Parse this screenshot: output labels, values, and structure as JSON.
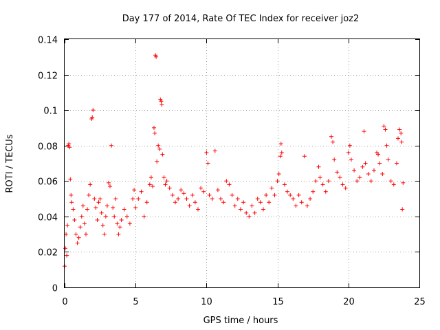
{
  "chart_data": {
    "type": "scatter",
    "title": "Day 177 of 2014, Rate Of TEC Index for receiver joz2",
    "xlabel": "GPS time / hours",
    "ylabel": "ROTI / TECUs",
    "xlim": [
      0,
      25
    ],
    "ylim": [
      0,
      0.14
    ],
    "xticks": [
      0,
      5,
      10,
      15,
      20,
      25
    ],
    "yticks": [
      0,
      0.02,
      0.04,
      0.06,
      0.08,
      0.1,
      0.12,
      0.14
    ],
    "xtick_labels": [
      "0",
      "5",
      "10",
      "15",
      "20",
      "25"
    ],
    "ytick_labels": [
      "0",
      "0.02",
      "0.04",
      "0.06",
      "0.08",
      "0.1",
      "0.12",
      "0.14"
    ],
    "grid": true,
    "marker": "plus",
    "color": "#ff0000",
    "series": [
      {
        "name": "ROTI",
        "points": [
          [
            0.0,
            0.012
          ],
          [
            0.05,
            0.022
          ],
          [
            0.1,
            0.03
          ],
          [
            0.15,
            0.018
          ],
          [
            0.2,
            0.035
          ],
          [
            0.25,
            0.08
          ],
          [
            0.3,
            0.081
          ],
          [
            0.35,
            0.079
          ],
          [
            0.4,
            0.061
          ],
          [
            0.45,
            0.052
          ],
          [
            0.5,
            0.048
          ],
          [
            0.6,
            0.044
          ],
          [
            0.7,
            0.038
          ],
          [
            0.8,
            0.03
          ],
          [
            0.9,
            0.025
          ],
          [
            1.0,
            0.028
          ],
          [
            1.1,
            0.034
          ],
          [
            1.2,
            0.04
          ],
          [
            1.3,
            0.046
          ],
          [
            1.4,
            0.036
          ],
          [
            1.5,
            0.03
          ],
          [
            1.6,
            0.044
          ],
          [
            1.7,
            0.052
          ],
          [
            1.8,
            0.058
          ],
          [
            1.9,
            0.095
          ],
          [
            1.95,
            0.096
          ],
          [
            2.0,
            0.1
          ],
          [
            2.1,
            0.05
          ],
          [
            2.2,
            0.045
          ],
          [
            2.3,
            0.038
          ],
          [
            2.4,
            0.048
          ],
          [
            2.5,
            0.05
          ],
          [
            2.6,
            0.042
          ],
          [
            2.7,
            0.035
          ],
          [
            2.8,
            0.03
          ],
          [
            2.9,
            0.04
          ],
          [
            3.0,
            0.046
          ],
          [
            3.1,
            0.059
          ],
          [
            3.2,
            0.057
          ],
          [
            3.3,
            0.08
          ],
          [
            3.4,
            0.045
          ],
          [
            3.5,
            0.04
          ],
          [
            3.6,
            0.05
          ],
          [
            3.7,
            0.036
          ],
          [
            3.8,
            0.03
          ],
          [
            3.9,
            0.034
          ],
          [
            4.0,
            0.038
          ],
          [
            4.2,
            0.044
          ],
          [
            4.4,
            0.04
          ],
          [
            4.6,
            0.036
          ],
          [
            4.8,
            0.05
          ],
          [
            4.9,
            0.055
          ],
          [
            5.0,
            0.045
          ],
          [
            5.2,
            0.05
          ],
          [
            5.4,
            0.054
          ],
          [
            5.6,
            0.04
          ],
          [
            5.8,
            0.048
          ],
          [
            6.0,
            0.058
          ],
          [
            6.1,
            0.062
          ],
          [
            6.2,
            0.057
          ],
          [
            6.3,
            0.09
          ],
          [
            6.35,
            0.087
          ],
          [
            6.4,
            0.131
          ],
          [
            6.45,
            0.13
          ],
          [
            6.5,
            0.071
          ],
          [
            6.6,
            0.08
          ],
          [
            6.7,
            0.078
          ],
          [
            6.75,
            0.106
          ],
          [
            6.8,
            0.105
          ],
          [
            6.85,
            0.103
          ],
          [
            6.9,
            0.075
          ],
          [
            7.0,
            0.062
          ],
          [
            7.1,
            0.058
          ],
          [
            7.2,
            0.06
          ],
          [
            7.4,
            0.056
          ],
          [
            7.6,
            0.052
          ],
          [
            7.8,
            0.048
          ],
          [
            8.0,
            0.05
          ],
          [
            8.2,
            0.055
          ],
          [
            8.4,
            0.053
          ],
          [
            8.6,
            0.05
          ],
          [
            8.8,
            0.046
          ],
          [
            9.0,
            0.052
          ],
          [
            9.2,
            0.048
          ],
          [
            9.4,
            0.044
          ],
          [
            9.6,
            0.056
          ],
          [
            9.8,
            0.054
          ],
          [
            10.0,
            0.076
          ],
          [
            10.1,
            0.07
          ],
          [
            10.2,
            0.052
          ],
          [
            10.4,
            0.05
          ],
          [
            10.6,
            0.077
          ],
          [
            10.8,
            0.055
          ],
          [
            11.0,
            0.05
          ],
          [
            11.2,
            0.048
          ],
          [
            11.4,
            0.06
          ],
          [
            11.6,
            0.058
          ],
          [
            11.8,
            0.052
          ],
          [
            12.0,
            0.046
          ],
          [
            12.2,
            0.05
          ],
          [
            12.4,
            0.044
          ],
          [
            12.6,
            0.048
          ],
          [
            12.8,
            0.042
          ],
          [
            13.0,
            0.04
          ],
          [
            13.2,
            0.046
          ],
          [
            13.4,
            0.042
          ],
          [
            13.6,
            0.05
          ],
          [
            13.8,
            0.048
          ],
          [
            14.0,
            0.044
          ],
          [
            14.2,
            0.052
          ],
          [
            14.4,
            0.048
          ],
          [
            14.6,
            0.056
          ],
          [
            14.8,
            0.052
          ],
          [
            15.0,
            0.06
          ],
          [
            15.1,
            0.064
          ],
          [
            15.2,
            0.074
          ],
          [
            15.25,
            0.081
          ],
          [
            15.3,
            0.076
          ],
          [
            15.5,
            0.058
          ],
          [
            15.7,
            0.054
          ],
          [
            15.9,
            0.052
          ],
          [
            16.1,
            0.05
          ],
          [
            16.3,
            0.046
          ],
          [
            16.5,
            0.052
          ],
          [
            16.7,
            0.048
          ],
          [
            16.9,
            0.074
          ],
          [
            17.1,
            0.046
          ],
          [
            17.3,
            0.05
          ],
          [
            17.5,
            0.054
          ],
          [
            17.7,
            0.06
          ],
          [
            17.9,
            0.068
          ],
          [
            18.0,
            0.062
          ],
          [
            18.2,
            0.058
          ],
          [
            18.4,
            0.054
          ],
          [
            18.6,
            0.06
          ],
          [
            18.8,
            0.085
          ],
          [
            18.9,
            0.082
          ],
          [
            19.0,
            0.072
          ],
          [
            19.2,
            0.065
          ],
          [
            19.4,
            0.062
          ],
          [
            19.6,
            0.058
          ],
          [
            19.8,
            0.056
          ],
          [
            20.0,
            0.076
          ],
          [
            20.1,
            0.08
          ],
          [
            20.2,
            0.072
          ],
          [
            20.4,
            0.066
          ],
          [
            20.6,
            0.06
          ],
          [
            20.8,
            0.062
          ],
          [
            21.0,
            0.068
          ],
          [
            21.1,
            0.088
          ],
          [
            21.2,
            0.07
          ],
          [
            21.4,
            0.064
          ],
          [
            21.6,
            0.06
          ],
          [
            21.8,
            0.066
          ],
          [
            22.0,
            0.076
          ],
          [
            22.1,
            0.075
          ],
          [
            22.2,
            0.07
          ],
          [
            22.4,
            0.064
          ],
          [
            22.5,
            0.091
          ],
          [
            22.6,
            0.089
          ],
          [
            22.7,
            0.08
          ],
          [
            22.8,
            0.072
          ],
          [
            23.0,
            0.06
          ],
          [
            23.2,
            0.058
          ],
          [
            23.4,
            0.07
          ],
          [
            23.5,
            0.084
          ],
          [
            23.6,
            0.089
          ],
          [
            23.7,
            0.087
          ],
          [
            23.75,
            0.082
          ],
          [
            23.8,
            0.044
          ],
          [
            23.85,
            0.059
          ]
        ]
      }
    ]
  }
}
